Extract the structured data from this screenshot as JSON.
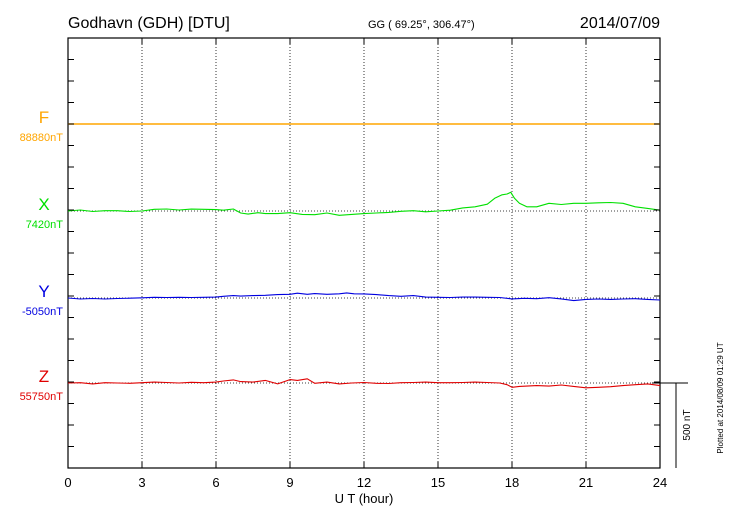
{
  "header": {
    "station": "Godhavn (GDH)  [DTU]",
    "coords": "GG ( 69.25°, 306.47°)",
    "date": "2014/07/09"
  },
  "footer": {
    "plotted": "Plotted at 2014/08/09 01:29 UT"
  },
  "chart_data": {
    "type": "line",
    "title": "Godhavn (GDH)  [DTU]",
    "xlabel": "U T (hour)",
    "xlim": [
      0,
      24
    ],
    "xticks": [
      "0",
      "3",
      "6",
      "9",
      "12",
      "15",
      "18",
      "21",
      "24"
    ],
    "scale_bar_label": "500 nT",
    "scale_bar_nT": 500,
    "grid": true,
    "series": [
      {
        "name": "F",
        "baseline_label": "88880nT",
        "baseline_nT": 88880,
        "color": "#ffa500",
        "x": [
          0,
          24
        ],
        "y": [
          0,
          0
        ]
      },
      {
        "name": "X",
        "baseline_label": "7420nT",
        "baseline_nT": 7420,
        "color": "#00e000",
        "x": [
          0,
          0.5,
          1,
          1.5,
          2,
          2.5,
          3,
          3.5,
          4,
          4.5,
          5,
          5.5,
          6,
          6.3,
          6.7,
          7,
          7.3,
          7.7,
          8,
          8.5,
          9,
          9.5,
          10,
          10.5,
          11,
          11.5,
          12,
          12.5,
          13,
          13.5,
          14,
          14.5,
          15,
          15.5,
          16,
          16.5,
          17,
          17.3,
          17.6,
          17.8,
          17.95,
          18.1,
          18.3,
          18.6,
          19,
          19.5,
          20,
          20.5,
          21,
          21.5,
          22,
          22.5,
          23,
          23.5,
          24
        ],
        "y": [
          0,
          6,
          -3,
          2,
          2,
          -3,
          0,
          10,
          12,
          6,
          11,
          10,
          8,
          5,
          12,
          -12,
          -18,
          -10,
          -15,
          -15,
          -10,
          -20,
          -22,
          -12,
          -25,
          -20,
          -15,
          -12,
          -8,
          -2,
          2,
          -5,
          0,
          5,
          18,
          25,
          40,
          75,
          95,
          100,
          110,
          75,
          45,
          25,
          25,
          45,
          38,
          45,
          45,
          48,
          50,
          45,
          25,
          15,
          5
        ]
      },
      {
        "name": "Y",
        "baseline_label": "-5050nT",
        "baseline_nT": -5050,
        "color": "#0000e0",
        "x": [
          0,
          0.5,
          1,
          1.5,
          2,
          2.5,
          3,
          3.5,
          4,
          4.5,
          5,
          5.5,
          6,
          6.3,
          6.7,
          7,
          7.5,
          8,
          8.5,
          9,
          9.3,
          9.7,
          10,
          10.5,
          11,
          11.3,
          11.6,
          12,
          12.5,
          13,
          13.5,
          14,
          14.5,
          15,
          15.5,
          16,
          16.5,
          17,
          17.5,
          18,
          18.5,
          19,
          19.5,
          20,
          20.5,
          21,
          21.5,
          22,
          22.5,
          23,
          23.5,
          24
        ],
        "y": [
          0,
          -6,
          -3,
          -6,
          -3,
          -1,
          1,
          4,
          3,
          4,
          3,
          4,
          5,
          10,
          14,
          11,
          14,
          16,
          20,
          22,
          28,
          22,
          26,
          22,
          25,
          30,
          25,
          24,
          20,
          14,
          10,
          14,
          5,
          4,
          3,
          5,
          5,
          4,
          3,
          -5,
          -2,
          -4,
          2,
          -5,
          -15,
          -8,
          -6,
          -8,
          -6,
          -4,
          -8,
          -12
        ]
      },
      {
        "name": "Z",
        "baseline_label": "55750nT",
        "baseline_nT": 55750,
        "color": "#e00000",
        "x": [
          0,
          0.5,
          1,
          1.5,
          2,
          2.5,
          3,
          3.5,
          4,
          4.5,
          5,
          5.5,
          6,
          6.3,
          6.7,
          7,
          7.5,
          8,
          8.5,
          9,
          9.3,
          9.7,
          10,
          10.5,
          11,
          11.5,
          12,
          12.5,
          13,
          13.5,
          14,
          14.5,
          15,
          15.5,
          16,
          16.5,
          17,
          17.5,
          17.8,
          18,
          18.3,
          18.6,
          19,
          19.5,
          20,
          20.5,
          21,
          21.5,
          22,
          22.5,
          23,
          23.5,
          24
        ],
        "y": [
          0,
          2,
          -5,
          2,
          0,
          -2,
          2,
          5,
          3,
          0,
          4,
          2,
          5,
          12,
          18,
          8,
          5,
          15,
          -5,
          20,
          15,
          25,
          -2,
          5,
          -5,
          0,
          3,
          -2,
          -3,
          2,
          3,
          5,
          2,
          2,
          3,
          5,
          3,
          0,
          -10,
          -25,
          -20,
          -18,
          -15,
          -18,
          -12,
          -20,
          -28,
          -25,
          -22,
          -15,
          -10,
          -5,
          -15
        ]
      }
    ]
  }
}
